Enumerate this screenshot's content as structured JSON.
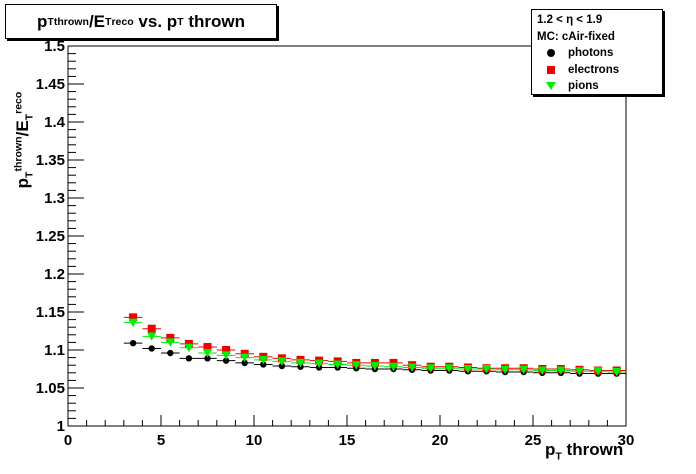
{
  "title": {
    "main": "p",
    "sub1": "T",
    "sup1": "thrown",
    "slash": "/E",
    "sub2": "T",
    "sup2": "reco",
    "rest": " vs. p",
    "sub3": "T",
    "tail": " thrown"
  },
  "legend": {
    "header1": "1.2 < η < 1.9",
    "header2": "MC: cAir-fixed",
    "entries": [
      {
        "label": "photons",
        "color": "#000000",
        "marker": "circle"
      },
      {
        "label": "electrons",
        "color": "#ee0000",
        "marker": "square"
      },
      {
        "label": "pions",
        "color": "#00ee00",
        "marker": "triangle-down"
      }
    ]
  },
  "axes": {
    "ylabel": {
      "main": "p",
      "sub1": "T",
      "sup1": "thrown",
      "slash": "/E",
      "sub2": "T",
      "sup2": "reco"
    },
    "xlabel": {
      "main": "p",
      "sub": "T",
      "tail": " thrown"
    }
  },
  "chart_data": {
    "type": "scatter",
    "xlim": [
      0,
      30
    ],
    "ylim": [
      1,
      1.5
    ],
    "x_ticks": [
      "0",
      "5",
      "10",
      "15",
      "20",
      "25",
      "30"
    ],
    "y_ticks": [
      "1",
      "1.05",
      "1.1",
      "1.15",
      "1.2",
      "1.25",
      "1.3",
      "1.35",
      "1.4",
      "1.45",
      "1.5"
    ],
    "series": [
      {
        "name": "photons",
        "color": "#000000",
        "marker": "circle",
        "x": [
          3.5,
          4.5,
          5.5,
          6.5,
          7.5,
          8.5,
          9.5,
          10.5,
          11.5,
          12.5,
          13.5,
          14.5,
          15.5,
          16.5,
          17.5,
          18.5,
          19.5,
          20.5,
          21.5,
          22.5,
          23.5,
          24.5,
          25.5,
          26.5,
          27.5,
          28.5,
          29.5
        ],
        "y": [
          1.109,
          1.102,
          1.096,
          1.089,
          1.089,
          1.086,
          1.083,
          1.081,
          1.079,
          1.078,
          1.077,
          1.077,
          1.076,
          1.075,
          1.075,
          1.074,
          1.073,
          1.073,
          1.072,
          1.072,
          1.071,
          1.071,
          1.07,
          1.07,
          1.069,
          1.069,
          1.069
        ]
      },
      {
        "name": "electrons",
        "color": "#ee0000",
        "marker": "square",
        "x": [
          3.5,
          4.5,
          5.5,
          6.5,
          7.5,
          8.5,
          9.5,
          10.5,
          11.5,
          12.5,
          13.5,
          14.5,
          15.5,
          16.5,
          17.5,
          18.5,
          19.5,
          20.5,
          21.5,
          22.5,
          23.5,
          24.5,
          25.5,
          26.5,
          27.5,
          28.5,
          29.5
        ],
        "y": [
          1.143,
          1.128,
          1.116,
          1.108,
          1.104,
          1.1,
          1.095,
          1.091,
          1.089,
          1.087,
          1.086,
          1.085,
          1.083,
          1.083,
          1.083,
          1.08,
          1.078,
          1.078,
          1.077,
          1.076,
          1.076,
          1.076,
          1.075,
          1.075,
          1.074,
          1.073,
          1.073
        ]
      },
      {
        "name": "pions",
        "color": "#00ee00",
        "marker": "triangle-down",
        "x": [
          3.5,
          4.5,
          5.5,
          6.5,
          7.5,
          8.5,
          9.5,
          10.5,
          11.5,
          12.5,
          13.5,
          14.5,
          15.5,
          16.5,
          17.5,
          18.5,
          19.5,
          20.5,
          21.5,
          22.5,
          23.5,
          24.5,
          25.5,
          26.5,
          27.5,
          28.5,
          29.5
        ],
        "y": [
          1.136,
          1.118,
          1.11,
          1.103,
          1.096,
          1.093,
          1.09,
          1.087,
          1.085,
          1.083,
          1.082,
          1.081,
          1.08,
          1.079,
          1.078,
          1.077,
          1.076,
          1.076,
          1.075,
          1.075,
          1.074,
          1.074,
          1.073,
          1.073,
          1.072,
          1.072,
          1.071
        ]
      }
    ]
  }
}
